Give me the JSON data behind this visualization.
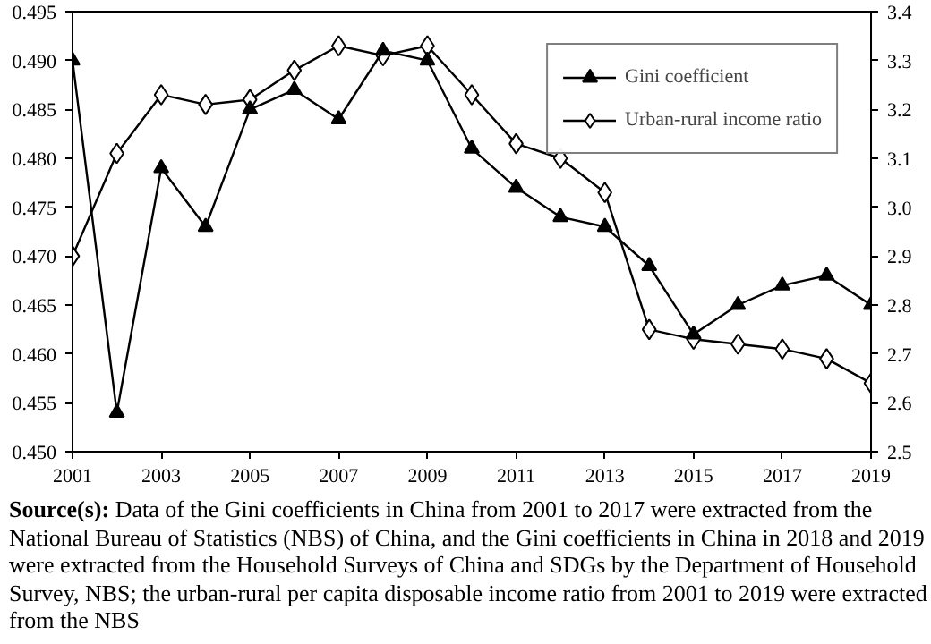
{
  "chart_data": {
    "type": "line",
    "x": [
      2001,
      2002,
      2003,
      2004,
      2005,
      2006,
      2007,
      2008,
      2009,
      2010,
      2011,
      2012,
      2013,
      2014,
      2015,
      2016,
      2017,
      2018,
      2019
    ],
    "series": [
      {
        "name": "Gini coefficient",
        "color": "#000000",
        "marker": "triangle",
        "values": [
          0.49,
          0.454,
          0.479,
          0.473,
          0.485,
          0.487,
          0.484,
          0.491,
          0.49,
          0.481,
          0.477,
          0.474,
          0.473,
          0.469,
          0.462,
          0.465,
          0.467,
          0.468,
          0.465
        ]
      },
      {
        "name": "Urban-rural income ratio",
        "color": "#000000",
        "marker": "diamond",
        "axis": "y2",
        "values": [
          2.9,
          3.11,
          3.23,
          3.21,
          3.22,
          3.28,
          3.33,
          3.31,
          3.33,
          3.23,
          3.13,
          3.1,
          3.03,
          2.75,
          2.73,
          2.72,
          2.71,
          2.69,
          2.64
        ]
      }
    ],
    "xlim": [
      2001,
      2019
    ],
    "xticks": [
      2001,
      2003,
      2005,
      2007,
      2009,
      2011,
      2013,
      2015,
      2017,
      2019
    ],
    "ylim": [
      0.45,
      0.495
    ],
    "yticks": [
      {
        "value": 0.45,
        "label": "0.450"
      },
      0.455,
      {
        "value": 0.46,
        "label": "0.460"
      },
      0.465,
      {
        "value": 0.47,
        "label": "0.470"
      },
      0.475,
      {
        "value": 0.48,
        "label": "0.480"
      },
      0.485,
      {
        "value": 0.49,
        "label": "0.490"
      },
      0.495
    ],
    "y2lim": [
      2.5,
      3.4
    ],
    "y2ticks": [
      2.5,
      2.6,
      2.7,
      2.8,
      2.9,
      {
        "value": 3.0,
        "label": "3.0"
      },
      3.1,
      3.2,
      3.3,
      3.4
    ],
    "grid": false,
    "legend": "top right",
    "line_style": "solid",
    "annotations": [
      "Source(s): Data of the Gini coefficients in China from 2001 to 2017 were extracted from the National Bureau of Statistics (NBS) of China, and the Gini coefficients in China in 2018 and 2019 were extracted from the Household Surveys of China and SDGs by the Department of Household Survey, NBS; the urban-rural per capita disposable income ratio from 2001 to 2019 were extracted from the NBS"
    ]
  }
}
